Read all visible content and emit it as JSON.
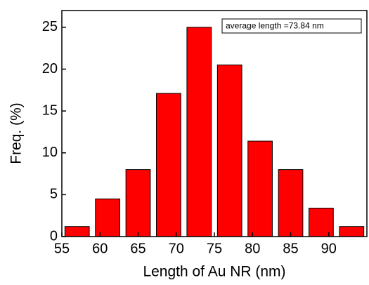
{
  "chart_data": {
    "type": "histogram",
    "xlabel": "Length of Au NR (nm)",
    "ylabel": "Freq. (%)",
    "annotation": "average length =73.84 nm",
    "bins": [
      55,
      59,
      63,
      67,
      71,
      75,
      79,
      83,
      87,
      91,
      95
    ],
    "values": [
      1.2,
      4.5,
      8,
      17.1,
      25,
      20.5,
      11.4,
      8,
      3.4,
      1.2
    ],
    "color": "#ff0000",
    "xlim": [
      55,
      95
    ],
    "xticks": [
      55,
      60,
      65,
      70,
      75,
      80,
      85,
      90
    ],
    "ylim": [
      0,
      27
    ],
    "yticks": [
      0,
      5,
      10,
      15,
      20,
      25
    ]
  }
}
